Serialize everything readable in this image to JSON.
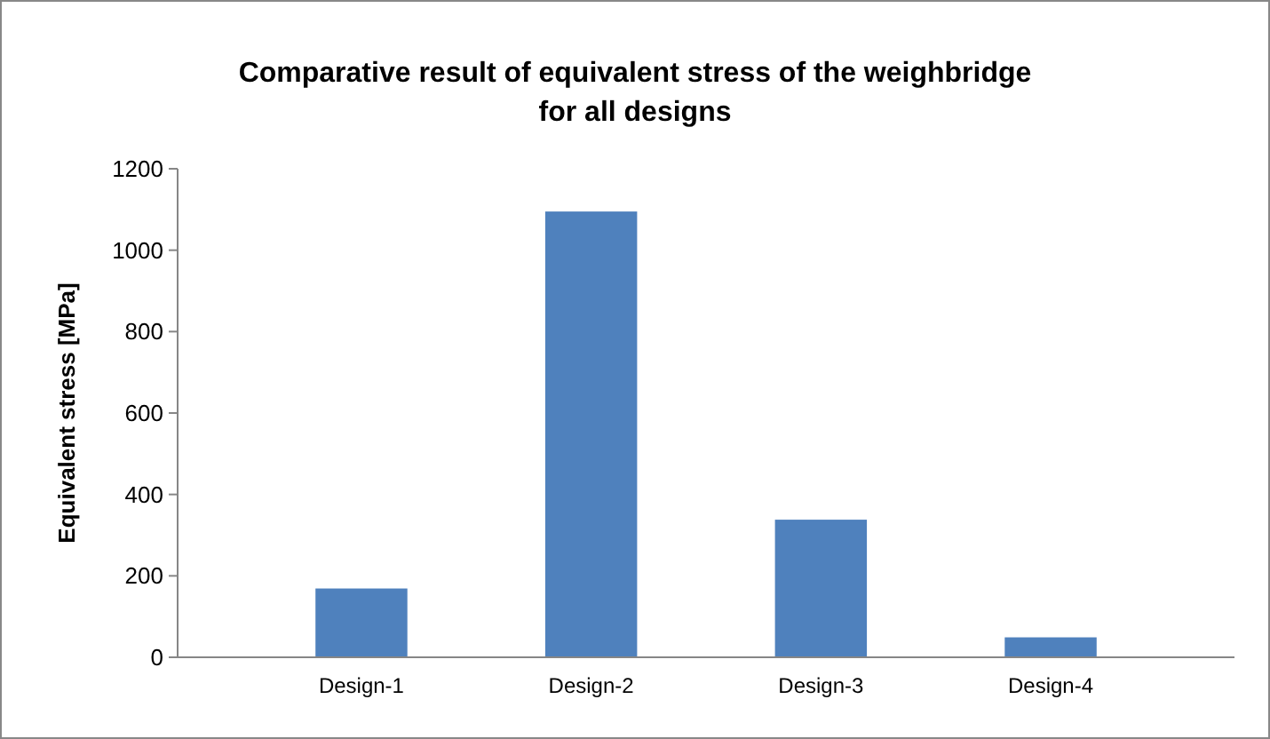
{
  "chart_data": {
    "type": "bar",
    "title": "Comparative result of equivalent stress of the weighbridge for all designs",
    "ylabel": "Equivalent stress [MPa]",
    "categories": [
      "Design-1",
      "Design-2",
      "Design-3",
      "Design-4"
    ],
    "values": [
      169,
      1095,
      338,
      49
    ],
    "color": "#4f81bd",
    "ylim": [
      0,
      1200
    ],
    "yticks": [
      0,
      200,
      400,
      600,
      800,
      1000,
      1200
    ],
    "grid": false
  }
}
